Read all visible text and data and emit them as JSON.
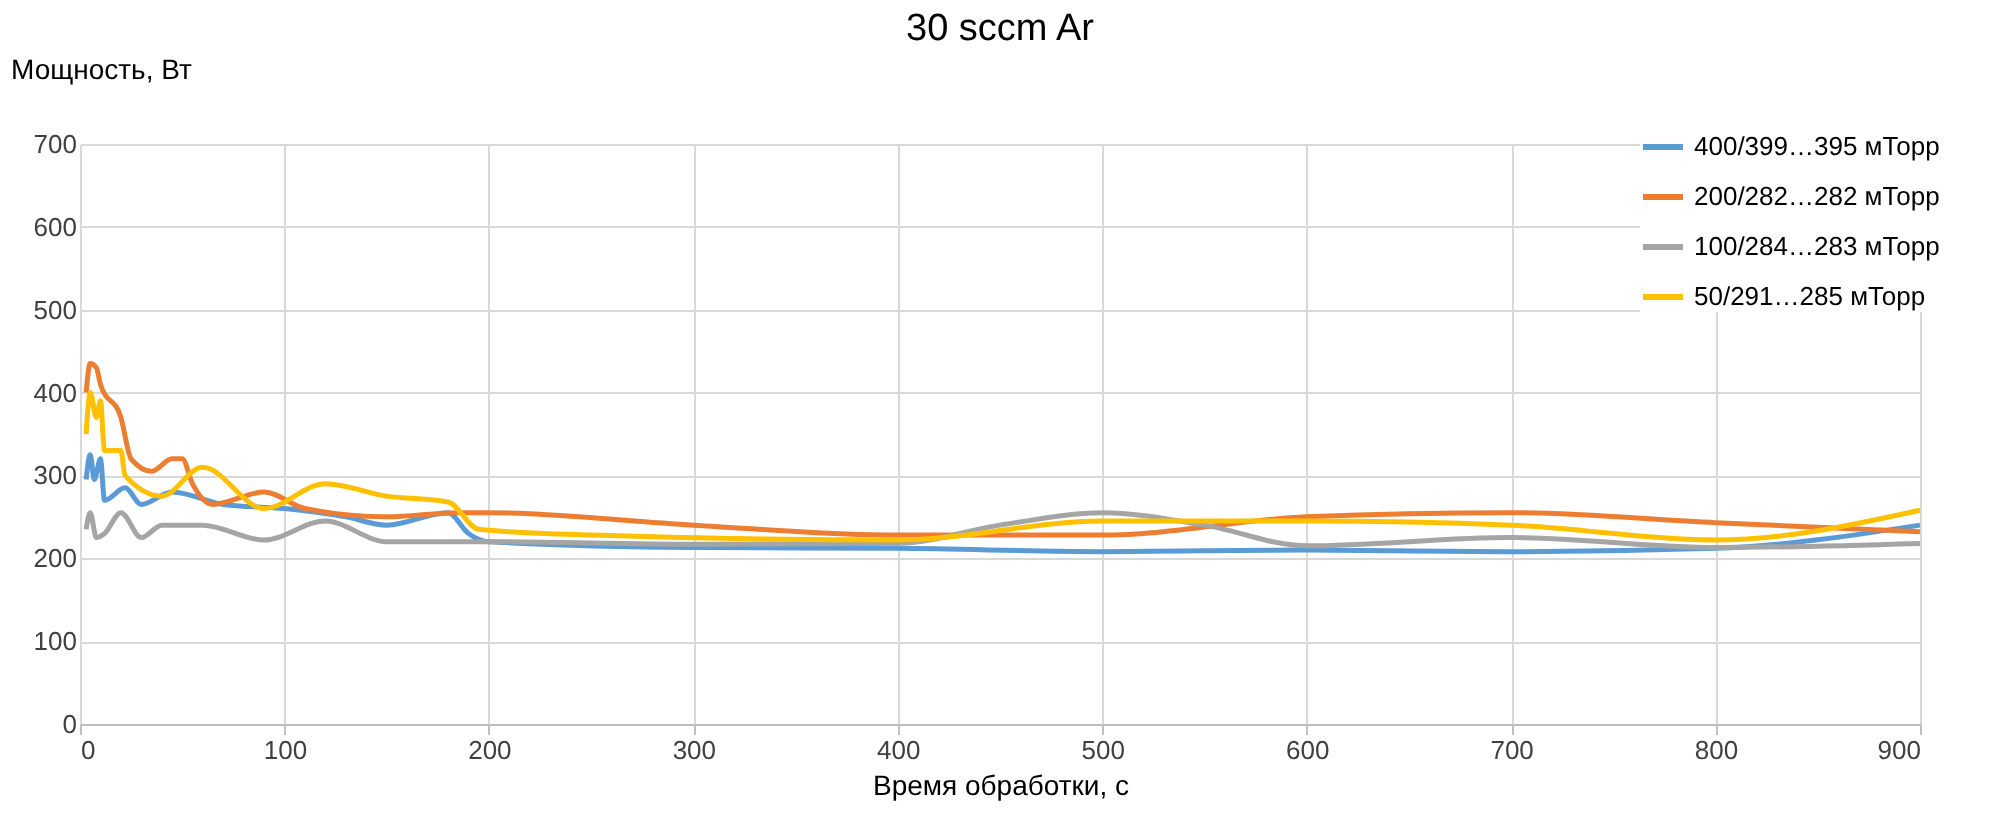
{
  "chart_data": {
    "type": "line",
    "title": "30 sccm Ar",
    "xlabel": "Время обработки, с",
    "ylabel": "Мощность, Вт",
    "xlim": [
      0,
      900
    ],
    "xticks": [
      0,
      100,
      200,
      300,
      400,
      500,
      600,
      700,
      800,
      900
    ],
    "ylim": [
      0,
      700
    ],
    "yticks": [
      0,
      100,
      200,
      300,
      400,
      500,
      600,
      700
    ],
    "grid": true,
    "legend": "top right",
    "marker": "none",
    "line_style": "solid",
    "series": [
      {
        "name": "400/399…395 мТорр",
        "color": "#5b9bd5",
        "x": [
          3,
          5,
          7,
          10,
          12,
          22,
          30,
          45,
          70,
          100,
          130,
          150,
          180,
          190,
          200,
          300,
          400,
          500,
          600,
          700,
          800,
          900
        ],
        "values": [
          295,
          325,
          295,
          320,
          270,
          285,
          265,
          280,
          265,
          260,
          250,
          240,
          255,
          230,
          220,
          213,
          212,
          208,
          210,
          208,
          212,
          240
        ]
      },
      {
        "name": "200/282…282 мТорр",
        "color": "#ed7d31",
        "x": [
          3,
          5,
          8,
          10,
          20,
          25,
          35,
          45,
          50,
          55,
          65,
          90,
          110,
          150,
          185,
          200,
          300,
          400,
          500,
          600,
          700,
          800,
          900
        ],
        "values": [
          400,
          435,
          430,
          410,
          370,
          320,
          305,
          320,
          320,
          290,
          265,
          280,
          260,
          250,
          255,
          255,
          240,
          228,
          228,
          250,
          255,
          243,
          232
        ]
      },
      {
        "name": "100/284…283 мТорр",
        "color": "#a5a5a5",
        "x": [
          3,
          5,
          8,
          12,
          20,
          30,
          40,
          60,
          90,
          120,
          150,
          200,
          300,
          400,
          450,
          500,
          550,
          600,
          700,
          800,
          900
        ],
        "values": [
          235,
          255,
          225,
          230,
          255,
          225,
          240,
          240,
          222,
          245,
          220,
          220,
          217,
          218,
          240,
          255,
          240,
          215,
          225,
          213,
          218
        ]
      },
      {
        "name": "50/291…285 мТорр",
        "color": "#ffc000",
        "x": [
          3,
          5,
          8,
          10,
          12,
          20,
          22,
          40,
          60,
          90,
          120,
          150,
          180,
          195,
          250,
          400,
          500,
          600,
          700,
          800,
          900
        ],
        "values": [
          350,
          400,
          370,
          390,
          330,
          330,
          300,
          275,
          310,
          260,
          290,
          275,
          268,
          235,
          228,
          222,
          245,
          245,
          240,
          222,
          258
        ]
      }
    ]
  }
}
